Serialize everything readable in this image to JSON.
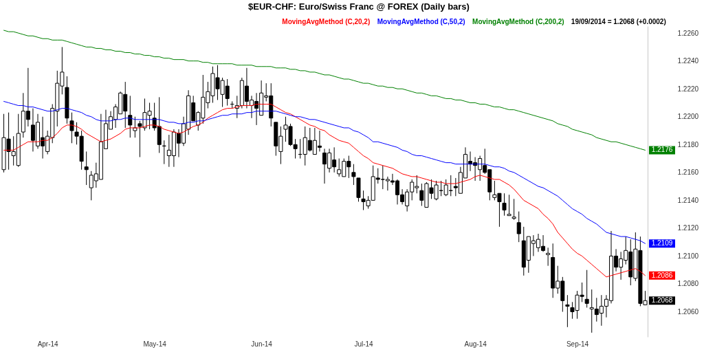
{
  "chart_data": {
    "type": "candlestick",
    "title": "$EUR-CHF:  Euro/Swiss Franc @ FOREX  (Daily bars)",
    "categories": [
      null,
      null,
      null,
      null,
      null,
      null,
      null,
      null,
      null,
      "Apr-14",
      null,
      null,
      null,
      null,
      null,
      null,
      null,
      null,
      null,
      null,
      null,
      null,
      null,
      null,
      null,
      null,
      null,
      null,
      null,
      null,
      null,
      "May-14",
      null,
      null,
      null,
      null,
      null,
      null,
      null,
      null,
      null,
      null,
      null,
      null,
      null,
      null,
      null,
      null,
      null,
      null,
      null,
      null,
      null,
      "Jun-14",
      null,
      null,
      null,
      null,
      null,
      null,
      null,
      null,
      null,
      null,
      null,
      null,
      null,
      null,
      null,
      null,
      null,
      null,
      null,
      null,
      "Jul-14",
      null,
      null,
      null,
      null,
      null,
      null,
      null,
      null,
      null,
      null,
      null,
      null,
      null,
      null,
      null,
      null,
      null,
      null,
      null,
      null,
      null,
      null,
      "Aug-14",
      null,
      null,
      null,
      null,
      null,
      null,
      null,
      null,
      null,
      null,
      null,
      null,
      null,
      null,
      null,
      null,
      null,
      null,
      null,
      null,
      "Sep-14",
      null,
      null,
      null,
      null,
      null,
      null,
      null,
      null,
      null,
      null,
      null,
      null,
      null,
      null
    ],
    "ohlc": [
      [
        1.2162,
        1.2202,
        1.216,
        1.2185
      ],
      [
        1.2184,
        1.2203,
        1.2162,
        1.2175
      ],
      [
        1.2172,
        1.2186,
        1.2165,
        1.2175
      ],
      [
        1.2165,
        1.2202,
        1.2164,
        1.2188
      ],
      [
        1.2189,
        1.2217,
        1.2185,
        1.2204
      ],
      [
        1.2204,
        1.2235,
        1.2193,
        1.2198
      ],
      [
        1.2194,
        1.2206,
        1.2175,
        1.2183
      ],
      [
        1.2179,
        1.2202,
        1.2177,
        1.2196
      ],
      [
        1.2185,
        1.22,
        1.217,
        1.2179
      ],
      [
        1.2175,
        1.219,
        1.2173,
        1.2186
      ],
      [
        1.2185,
        1.2209,
        1.2181,
        1.2206
      ],
      [
        1.2204,
        1.2233,
        1.2193,
        1.2224
      ],
      [
        1.2222,
        1.225,
        1.2216,
        1.2232
      ],
      [
        1.2221,
        1.2229,
        1.2195,
        1.2199
      ],
      [
        1.2197,
        1.2203,
        1.2181,
        1.219
      ],
      [
        1.2189,
        1.2196,
        1.218,
        1.2186
      ],
      [
        1.2186,
        1.219,
        1.2162,
        1.2168
      ],
      [
        1.2164,
        1.2175,
        1.2151,
        1.2162
      ],
      [
        1.2149,
        1.2161,
        1.214,
        1.2158
      ],
      [
        1.2154,
        1.2167,
        1.2149,
        1.2159
      ],
      [
        1.2155,
        1.2202,
        1.2155,
        1.2182
      ],
      [
        1.2177,
        1.2205,
        1.2177,
        1.2195
      ],
      [
        1.2191,
        1.2204,
        1.2191,
        1.22
      ],
      [
        1.2198,
        1.2209,
        1.2192,
        1.2207
      ],
      [
        1.2202,
        1.2218,
        1.2202,
        1.2217
      ],
      [
        1.2216,
        1.2225,
        1.2192,
        1.2204
      ],
      [
        1.2201,
        1.2215,
        1.2185,
        1.2194
      ],
      [
        1.219,
        1.22,
        1.2185,
        1.2192
      ],
      [
        1.2195,
        1.2197,
        1.2171,
        1.2193
      ],
      [
        1.2192,
        1.2213,
        1.219,
        1.2203
      ],
      [
        1.2201,
        1.221,
        1.2191,
        1.2204
      ],
      [
        1.2199,
        1.221,
        1.219,
        1.2192
      ],
      [
        1.2193,
        1.2214,
        1.2174,
        1.218
      ],
      [
        1.2179,
        1.2183,
        1.2166,
        1.2179
      ],
      [
        1.2172,
        1.2187,
        1.2164,
        1.2176
      ],
      [
        1.2172,
        1.2191,
        1.2164,
        1.2189
      ],
      [
        1.2188,
        1.2191,
        1.2171,
        1.2181
      ],
      [
        1.2181,
        1.22,
        1.2179,
        1.2195
      ],
      [
        1.2191,
        1.2219,
        1.2187,
        1.2215
      ],
      [
        1.221,
        1.2215,
        1.2197,
        1.2197
      ],
      [
        1.2194,
        1.2204,
        1.219,
        1.2203
      ],
      [
        1.2199,
        1.223,
        1.2195,
        1.2214
      ],
      [
        1.221,
        1.2225,
        1.2206,
        1.2218
      ],
      [
        1.2215,
        1.2236,
        1.221,
        1.2231
      ],
      [
        1.2228,
        1.2237,
        1.2212,
        1.222
      ],
      [
        1.2216,
        1.2228,
        1.2207,
        1.2226
      ],
      [
        1.2222,
        1.2227,
        1.2208,
        1.2213
      ],
      [
        1.2209,
        1.2211,
        1.2206,
        1.2209
      ],
      [
        1.2206,
        1.2215,
        1.2199,
        1.2208
      ],
      [
        1.2208,
        1.2228,
        1.2206,
        1.2226
      ],
      [
        1.2222,
        1.2235,
        1.2206,
        1.2211
      ],
      [
        1.2208,
        1.2215,
        1.2199,
        1.2212
      ],
      [
        1.2211,
        1.2217,
        1.2194,
        1.2206
      ],
      [
        1.2201,
        1.2226,
        1.2201,
        1.2217
      ],
      [
        1.2214,
        1.2224,
        1.2211,
        1.2215
      ],
      [
        1.2215,
        1.2224,
        1.2193,
        1.2199
      ],
      [
        1.2196,
        1.2196,
        1.2172,
        1.2179
      ],
      [
        1.2175,
        1.2193,
        1.2166,
        1.2186
      ],
      [
        1.2191,
        1.22,
        1.2182,
        1.2194
      ],
      [
        1.2193,
        1.2195,
        1.2179,
        1.218
      ],
      [
        1.218,
        1.2184,
        1.217,
        1.2177
      ],
      [
        1.2173,
        1.2184,
        1.217,
        1.2173
      ],
      [
        1.2173,
        1.2193,
        1.2165,
        1.2185
      ],
      [
        1.2183,
        1.2192,
        1.2175,
        1.2176
      ],
      [
        1.2173,
        1.2192,
        1.2173,
        1.2183
      ],
      [
        1.2179,
        1.219,
        1.2175,
        1.2178
      ],
      [
        1.2174,
        1.2177,
        1.2152,
        1.2166
      ],
      [
        1.2163,
        1.2177,
        1.216,
        1.2174
      ],
      [
        1.2169,
        1.2178,
        1.216,
        1.2164
      ],
      [
        1.2159,
        1.217,
        1.2157,
        1.2162
      ],
      [
        1.2157,
        1.217,
        1.2157,
        1.2168
      ],
      [
        1.2168,
        1.2172,
        1.2156,
        1.2164
      ],
      [
        1.216,
        1.2166,
        1.2151,
        1.2157
      ],
      [
        1.2156,
        1.2156,
        1.2139,
        1.2142
      ],
      [
        1.2141,
        1.2147,
        1.2133,
        1.2139
      ],
      [
        1.2136,
        1.2143,
        1.2134,
        1.214
      ],
      [
        1.214,
        1.2165,
        1.214,
        1.2157
      ],
      [
        1.2156,
        1.2163,
        1.2152,
        1.2155
      ],
      [
        1.2155,
        1.2165,
        1.2148,
        1.2155
      ],
      [
        1.2154,
        1.2157,
        1.2147,
        1.2155
      ],
      [
        1.2154,
        1.2159,
        1.2151,
        1.2153
      ],
      [
        1.2154,
        1.2155,
        1.2137,
        1.2144
      ],
      [
        1.2144,
        1.2148,
        1.2137,
        1.2139
      ],
      [
        1.2136,
        1.2148,
        1.2132,
        1.2146
      ],
      [
        1.2146,
        1.2155,
        1.214,
        1.2153
      ],
      [
        1.2149,
        1.2158,
        1.2145,
        1.215
      ],
      [
        1.2147,
        1.2152,
        1.2136,
        1.214
      ],
      [
        1.2135,
        1.2153,
        1.2135,
        1.2152
      ],
      [
        1.2149,
        1.2155,
        1.2141,
        1.2145
      ],
      [
        1.2141,
        1.2154,
        1.214,
        1.2151
      ],
      [
        1.2147,
        1.2154,
        1.2143,
        1.2147
      ],
      [
        1.2144,
        1.2155,
        1.2143,
        1.2151
      ],
      [
        1.2147,
        1.2158,
        1.2143,
        1.2147
      ],
      [
        1.215,
        1.2156,
        1.2143,
        1.2149
      ],
      [
        1.2145,
        1.2164,
        1.2145,
        1.216
      ],
      [
        1.2156,
        1.2178,
        1.2156,
        1.2173
      ],
      [
        1.2168,
        1.2175,
        1.2161,
        1.2166
      ],
      [
        1.2167,
        1.2171,
        1.2154,
        1.2165
      ],
      [
        1.2162,
        1.2172,
        1.2154,
        1.217
      ],
      [
        1.2165,
        1.2177,
        1.2159,
        1.216
      ],
      [
        1.2162,
        1.2162,
        1.214,
        1.2146
      ],
      [
        1.2142,
        1.2154,
        1.214,
        1.2144
      ],
      [
        1.2145,
        1.2145,
        1.2121,
        1.2139
      ],
      [
        1.2138,
        1.2145,
        1.2129,
        1.2133
      ],
      [
        1.2129,
        1.2144,
        1.2129,
        1.213
      ],
      [
        1.2127,
        1.2141,
        1.2126,
        1.2128
      ],
      [
        1.2124,
        1.2132,
        1.211,
        1.2116
      ],
      [
        1.2111,
        1.2121,
        1.2086,
        1.2092
      ],
      [
        1.2097,
        1.2114,
        1.2088,
        1.2114
      ],
      [
        1.2109,
        1.2115,
        1.21,
        1.2111
      ],
      [
        1.2106,
        1.2116,
        1.2103,
        1.2112
      ],
      [
        1.2107,
        1.2115,
        1.2103,
        1.2104
      ],
      [
        1.2101,
        1.2106,
        1.2093,
        1.2102
      ],
      [
        1.2099,
        1.2109,
        1.207,
        1.2077
      ],
      [
        1.2077,
        1.2093,
        1.2073,
        1.2082
      ],
      [
        1.2082,
        1.2085,
        1.206,
        1.2068
      ],
      [
        1.2065,
        1.2072,
        1.2049,
        1.2064
      ],
      [
        1.2063,
        1.2067,
        1.2055,
        1.206
      ],
      [
        1.2061,
        1.2075,
        1.2055,
        1.2072
      ],
      [
        1.2072,
        1.2081,
        1.2067,
        1.2071
      ],
      [
        1.2069,
        1.209,
        1.2063,
        1.2066
      ],
      [
        1.2062,
        1.2076,
        1.2045,
        1.2063
      ],
      [
        1.2062,
        1.207,
        1.2053,
        1.2058
      ],
      [
        1.2059,
        1.2072,
        1.205,
        1.2064
      ],
      [
        1.2064,
        1.2072,
        1.2056,
        1.2069
      ],
      [
        1.2068,
        1.2118,
        1.2066,
        1.21
      ],
      [
        1.21,
        1.2105,
        1.2089,
        1.2092
      ],
      [
        1.2092,
        1.2103,
        1.2083,
        1.2098
      ],
      [
        1.2097,
        1.2114,
        1.2094,
        1.2104
      ],
      [
        1.2103,
        1.2112,
        1.2079,
        1.2085
      ],
      [
        1.2084,
        1.2117,
        1.2082,
        1.2105
      ],
      [
        1.2104,
        1.2114,
        1.2064,
        1.2066
      ],
      [
        1.2065,
        1.2075,
        1.2065,
        1.2068
      ]
    ],
    "color": "#000000",
    "series": [
      {
        "name": "MovingAvgMethod (C,20,2)",
        "type": "line",
        "color": "#ff0000",
        "values": [
          1.2176,
          1.2176,
          1.2176,
          1.2178,
          1.218,
          1.2182,
          1.2182,
          1.2182,
          1.2183,
          1.2183,
          1.2185,
          1.2188,
          1.2192,
          1.2194,
          1.2194,
          1.2193,
          1.2191,
          1.2188,
          1.2186,
          1.2184,
          1.2182,
          1.2183,
          1.2184,
          1.2186,
          1.2188,
          1.2191,
          1.2192,
          1.2192,
          1.2192,
          1.2193,
          1.2194,
          1.2194,
          1.2193,
          1.2191,
          1.219,
          1.2189,
          1.2188,
          1.2189,
          1.2191,
          1.2193,
          1.2194,
          1.2196,
          1.2199,
          1.2201,
          1.2203,
          1.2205,
          1.2206,
          1.2206,
          1.2207,
          1.2208,
          1.2208,
          1.2208,
          1.2209,
          1.2209,
          1.2209,
          1.2209,
          1.2207,
          1.2205,
          1.2203,
          1.2202,
          1.22,
          1.2198,
          1.2196,
          1.2194,
          1.2193,
          1.2191,
          1.219,
          1.2187,
          1.2185,
          1.2183,
          1.2182,
          1.2181,
          1.2178,
          1.2175,
          1.2172,
          1.217,
          1.2167,
          1.2166,
          1.2165,
          1.2164,
          1.2163,
          1.2161,
          1.2159,
          1.2158,
          1.2157,
          1.2157,
          1.2156,
          1.2155,
          1.2154,
          1.2153,
          1.2153,
          1.2152,
          1.2152,
          1.2152,
          1.2153,
          1.2154,
          1.2155,
          1.2157,
          1.2158,
          1.2157,
          1.2156,
          1.2155,
          1.2155,
          1.2153,
          1.2151,
          1.2148,
          1.2144,
          1.214,
          1.2138,
          1.2136,
          1.2134,
          1.213,
          1.2127,
          1.2123,
          1.2117,
          1.2113,
          1.2109,
          1.2105,
          1.2102,
          1.21,
          1.2097,
          1.2094,
          1.2091,
          1.2088,
          1.2085,
          1.2086,
          1.2087,
          1.2088,
          1.2089,
          1.209,
          1.2091,
          1.2089,
          1.2086
        ],
        "value_labels": [
          null,
          null,
          null,
          null,
          null,
          null,
          null,
          null,
          null,
          null,
          null,
          null,
          null,
          null,
          null,
          null,
          null,
          null,
          null,
          null,
          null,
          null,
          null,
          null,
          null,
          null,
          null,
          null,
          null,
          null,
          null,
          null,
          null,
          null,
          null,
          null,
          null,
          null,
          null,
          null,
          null,
          null,
          null,
          null,
          null,
          null,
          null,
          null,
          null,
          null,
          null,
          null,
          null,
          null,
          null,
          null,
          null,
          null,
          null,
          null,
          null,
          null,
          null,
          null,
          null,
          null,
          null,
          null,
          null,
          null,
          null,
          null,
          null,
          null,
          null,
          null,
          null,
          null,
          null,
          null,
          null,
          null,
          null,
          null,
          null,
          null,
          null,
          null,
          null,
          null,
          null,
          null,
          null,
          null,
          null,
          null,
          null,
          null,
          null,
          null,
          null,
          null,
          null,
          null,
          null,
          null,
          null,
          null,
          null,
          null,
          null,
          null,
          null,
          null,
          null,
          null,
          null,
          null,
          null,
          null,
          null,
          null,
          null,
          null,
          null,
          null,
          null,
          null,
          null,
          null,
          null,
          null,
          "1.2086"
        ]
      },
      {
        "name": "MovingAvgMethod (C,50,2)",
        "type": "line",
        "color": "#0000ff",
        "values": [
          1.2211,
          1.221,
          1.2209,
          1.2208,
          1.2208,
          1.2207,
          1.2207,
          1.2206,
          1.2205,
          1.2204,
          1.2204,
          1.2205,
          1.2206,
          1.2206,
          1.2205,
          1.2204,
          1.2203,
          1.2201,
          1.22,
          1.2198,
          1.2197,
          1.2197,
          1.2197,
          1.2198,
          1.2198,
          1.2199,
          1.2199,
          1.2198,
          1.2198,
          1.2198,
          1.2198,
          1.2198,
          1.2198,
          1.2197,
          1.2196,
          1.2196,
          1.2195,
          1.2195,
          1.2196,
          1.2196,
          1.2197,
          1.2197,
          1.2198,
          1.2199,
          1.22,
          1.2201,
          1.2201,
          1.2202,
          1.2202,
          1.2202,
          1.2203,
          1.2203,
          1.2204,
          1.2204,
          1.2204,
          1.2204,
          1.2204,
          1.2203,
          1.2202,
          1.2201,
          1.22,
          1.22,
          1.2199,
          1.2198,
          1.2198,
          1.2197,
          1.2196,
          1.2195,
          1.2194,
          1.2193,
          1.2192,
          1.2192,
          1.219,
          1.2189,
          1.2187,
          1.2185,
          1.2182,
          1.2182,
          1.2181,
          1.218,
          1.2179,
          1.2178,
          1.2176,
          1.2175,
          1.2173,
          1.2172,
          1.2172,
          1.2171,
          1.217,
          1.2169,
          1.2168,
          1.2167,
          1.2167,
          1.2166,
          1.2166,
          1.2166,
          1.2166,
          1.2166,
          1.2166,
          1.2166,
          1.2165,
          1.2164,
          1.2164,
          1.2163,
          1.2161,
          1.216,
          1.2158,
          1.2156,
          1.2154,
          1.2152,
          1.215,
          1.2149,
          1.2147,
          1.2145,
          1.2143,
          1.214,
          1.2137,
          1.2134,
          1.2132,
          1.213,
          1.2127,
          1.2125,
          1.2123,
          1.212,
          1.2117,
          1.2116,
          1.2115,
          1.2114,
          1.2114,
          1.2113,
          1.2112,
          1.2111,
          1.2109
        ],
        "value_labels": [
          null,
          null,
          null,
          null,
          null,
          null,
          null,
          null,
          null,
          null,
          null,
          null,
          null,
          null,
          null,
          null,
          null,
          null,
          null,
          null,
          null,
          null,
          null,
          null,
          null,
          null,
          null,
          null,
          null,
          null,
          null,
          null,
          null,
          null,
          null,
          null,
          null,
          null,
          null,
          null,
          null,
          null,
          null,
          null,
          null,
          null,
          null,
          null,
          null,
          null,
          null,
          null,
          null,
          null,
          null,
          null,
          null,
          null,
          null,
          null,
          null,
          null,
          null,
          null,
          null,
          null,
          null,
          null,
          null,
          null,
          null,
          null,
          null,
          null,
          null,
          null,
          null,
          null,
          null,
          null,
          null,
          null,
          null,
          null,
          null,
          null,
          null,
          null,
          null,
          null,
          null,
          null,
          null,
          null,
          null,
          null,
          null,
          null,
          null,
          null,
          null,
          null,
          null,
          null,
          null,
          null,
          null,
          null,
          null,
          null,
          null,
          null,
          null,
          null,
          null,
          null,
          null,
          null,
          null,
          null,
          null,
          null,
          null,
          null,
          null,
          null,
          null,
          null,
          null,
          null,
          null,
          null,
          "1.2109"
        ]
      },
      {
        "name": "MovingAvgMethod (C,200,2)",
        "type": "line",
        "color": "#008000",
        "values": [
          1.2262,
          1.2261,
          1.2261,
          1.226,
          1.2259,
          1.2258,
          1.2258,
          1.2257,
          1.2256,
          1.2256,
          1.2255,
          1.2255,
          1.2255,
          1.2254,
          1.2253,
          1.2252,
          1.2251,
          1.225,
          1.225,
          1.2249,
          1.2249,
          1.2248,
          1.2248,
          1.2247,
          1.2247,
          1.2246,
          1.2246,
          1.2245,
          1.2245,
          1.2244,
          1.2244,
          1.2243,
          1.2243,
          1.2242,
          1.2242,
          1.2241,
          1.2241,
          1.2241,
          1.224,
          1.224,
          1.224,
          1.2239,
          1.2239,
          1.2238,
          1.2238,
          1.2238,
          1.2238,
          1.2238,
          1.2237,
          1.2237,
          1.2237,
          1.2237,
          1.2236,
          1.2236,
          1.2236,
          1.2236,
          1.2235,
          1.2235,
          1.2235,
          1.2234,
          1.2234,
          1.2233,
          1.2233,
          1.2232,
          1.2232,
          1.2231,
          1.223,
          1.223,
          1.2229,
          1.2228,
          1.2227,
          1.2227,
          1.2226,
          1.2225,
          1.2224,
          1.2224,
          1.2223,
          1.2222,
          1.2222,
          1.2221,
          1.2221,
          1.222,
          1.222,
          1.2219,
          1.2218,
          1.2217,
          1.2217,
          1.2216,
          1.2215,
          1.2215,
          1.2214,
          1.2213,
          1.2213,
          1.2212,
          1.2212,
          1.2211,
          1.221,
          1.221,
          1.2209,
          1.2209,
          1.2208,
          1.2207,
          1.2207,
          1.2206,
          1.2205,
          1.2205,
          1.2204,
          1.2203,
          1.2202,
          1.2201,
          1.22,
          1.2199,
          1.2198,
          1.2197,
          1.2195,
          1.2194,
          1.2193,
          1.2191,
          1.219,
          1.2189,
          1.2188,
          1.2187,
          1.2185,
          1.2184,
          1.2183,
          1.2182,
          1.2182,
          1.2181,
          1.218,
          1.2179,
          1.2178,
          1.2177,
          1.2176
        ],
        "value_labels": [
          null,
          null,
          null,
          null,
          null,
          null,
          null,
          null,
          null,
          null,
          null,
          null,
          null,
          null,
          null,
          null,
          null,
          null,
          null,
          null,
          null,
          null,
          null,
          null,
          null,
          null,
          null,
          null,
          null,
          null,
          null,
          null,
          null,
          null,
          null,
          null,
          null,
          null,
          null,
          null,
          null,
          null,
          null,
          null,
          null,
          null,
          null,
          null,
          null,
          null,
          null,
          null,
          null,
          null,
          null,
          null,
          null,
          null,
          null,
          null,
          null,
          null,
          null,
          null,
          null,
          null,
          null,
          null,
          null,
          null,
          null,
          null,
          null,
          null,
          null,
          null,
          null,
          null,
          null,
          null,
          null,
          null,
          null,
          null,
          null,
          null,
          null,
          null,
          null,
          null,
          null,
          null,
          null,
          null,
          null,
          null,
          null,
          null,
          null,
          null,
          null,
          null,
          null,
          null,
          null,
          null,
          null,
          null,
          null,
          null,
          null,
          null,
          null,
          null,
          null,
          null,
          null,
          null,
          null,
          null,
          null,
          null,
          null,
          null,
          null,
          null,
          null,
          null,
          null,
          null,
          null,
          null,
          "1.2176"
        ]
      }
    ],
    "ylim": [
      1.2042,
      1.2265
    ],
    "yticks": [
      {
        "value": 1.206,
        "label": "1.2060"
      },
      {
        "value": 1.208,
        "label": "1.2080"
      },
      {
        "value": 1.21,
        "label": "1.2100"
      },
      {
        "value": 1.212,
        "label": "1.2120"
      },
      {
        "value": 1.214,
        "label": "1.2140"
      },
      {
        "value": 1.216,
        "label": "1.2160"
      },
      {
        "value": 1.218,
        "label": "1.2180"
      },
      {
        "value": 1.22,
        "label": "1.2200"
      },
      {
        "value": 1.222,
        "label": "1.2220"
      },
      {
        "value": 1.224,
        "label": "1.2240"
      },
      {
        "value": 1.226,
        "label": "1.2260"
      }
    ],
    "legend": "top",
    "annotations": [
      "19/09/2014 = 1.2068 (+0.0002)",
      {
        "text": "1.2068",
        "y": 1.2068
      }
    ]
  }
}
